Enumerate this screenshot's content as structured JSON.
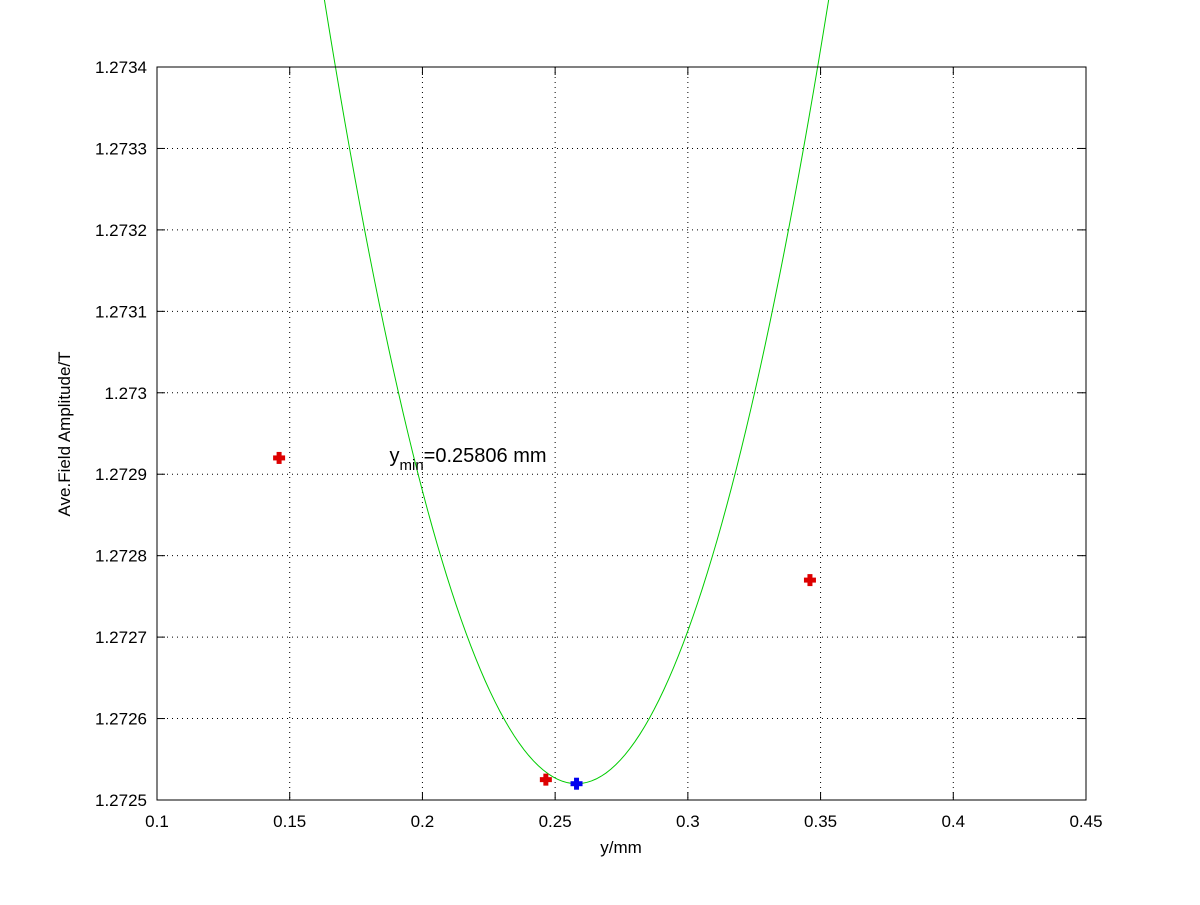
{
  "chart_data": {
    "type": "line",
    "title": "",
    "xlabel": "y/mm",
    "ylabel": "Ave.Field Amplitude/T",
    "xlim": [
      0.1,
      0.45
    ],
    "ylim": [
      1.2725,
      1.2734
    ],
    "xticks": [
      0.1,
      0.15,
      0.2,
      0.25,
      0.3,
      0.35,
      0.4,
      0.45
    ],
    "xtick_labels": [
      "0.1",
      "0.15",
      "0.2",
      "0.25",
      "0.3",
      "0.35",
      "0.4",
      "0.45"
    ],
    "yticks": [
      1.2725,
      1.2726,
      1.2727,
      1.2728,
      1.2729,
      1.273,
      1.2731,
      1.2732,
      1.2733,
      1.2734
    ],
    "ytick_labels": [
      "1.2725",
      "1.2726",
      "1.2727",
      "1.2728",
      "1.2729",
      "1.273",
      "1.2731",
      "1.2732",
      "1.2733",
      "1.2734"
    ],
    "grid": true,
    "fit_curve": {
      "color": "#00cc00",
      "x_start": 0.1,
      "x_end": 0.391,
      "x_vertex": 0.25806,
      "y_vertex": 1.27252,
      "curvature": 0.10667
    },
    "series": [
      {
        "color": "#dd0000",
        "marker": "plus",
        "points": [
          [
            0.146,
            1.27292
          ],
          [
            0.2465,
            1.272525
          ],
          [
            0.346,
            1.27277
          ]
        ]
      },
      {
        "color": "#0000ee",
        "marker": "plus",
        "points": [
          [
            0.25806,
            1.27252
          ]
        ]
      }
    ],
    "annotation": {
      "base": "y",
      "subscript": "min",
      "suffix": "=0.25806 mm",
      "x": 0.1876,
      "y": 1.27292
    }
  }
}
